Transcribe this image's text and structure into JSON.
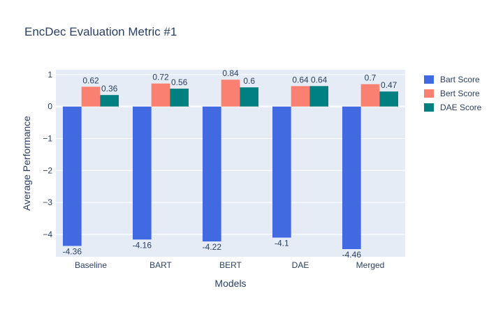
{
  "chart_data": {
    "type": "bar",
    "title": "EncDec Evaluation Metric #1",
    "xlabel": "Models",
    "ylabel": "Average Performance",
    "categories": [
      "Baseline",
      "BART",
      "BERT",
      "DAE",
      "Merged"
    ],
    "series": [
      {
        "name": "Bart Score",
        "color": "#4169e1",
        "values": [
          -4.36,
          -4.16,
          -4.22,
          -4.1,
          -4.46
        ]
      },
      {
        "name": "Bert Score",
        "color": "#fa8072",
        "values": [
          0.62,
          0.72,
          0.84,
          0.64,
          0.7
        ]
      },
      {
        "name": "DAE Score",
        "color": "#008080",
        "values": [
          0.36,
          0.56,
          0.6,
          0.64,
          0.47
        ]
      }
    ],
    "ylim": [
      -4.7,
      1.15
    ],
    "yticks": [
      1,
      0,
      -1,
      -2,
      -3,
      -4
    ],
    "ytick_labels": [
      "1",
      "0",
      "−1",
      "−2",
      "−3",
      "−4"
    ],
    "grid": true,
    "legend_position": "top-right",
    "plot_background": "#e5ecf6"
  }
}
